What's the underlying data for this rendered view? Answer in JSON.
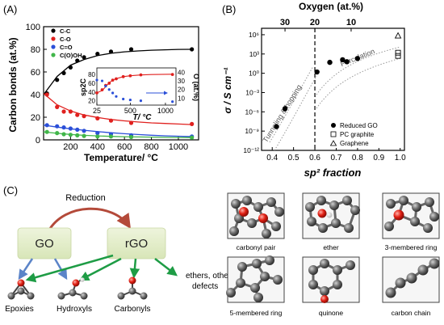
{
  "panel_labels": {
    "a": "(A)",
    "b": "(B)",
    "c": "(C)"
  },
  "chart_data": [
    {
      "type": "scatter",
      "panel": "A",
      "ylabel": "Carbon bonds (at.%)",
      "xlabel": "Temperature/ °C",
      "xlim": [
        0,
        1150
      ],
      "ylim": [
        0,
        100
      ],
      "xticks": [
        200,
        400,
        600,
        800,
        1000
      ],
      "yticks": [
        0,
        20,
        40,
        60,
        80,
        100
      ],
      "legend_position": "top-left",
      "series": [
        {
          "name": "C-C",
          "color": "#000000",
          "x": [
            25,
            100,
            150,
            200,
            250,
            300,
            400,
            500,
            650,
            1100
          ],
          "y": [
            41,
            53,
            59,
            64,
            70,
            73,
            76,
            78,
            80,
            80
          ],
          "fit_x": [
            0,
            100,
            200,
            300,
            400,
            500,
            600,
            700,
            800,
            900,
            1000,
            1100
          ],
          "fit_y": [
            40,
            56,
            66,
            71,
            74.5,
            76.5,
            77.8,
            78.6,
            79.2,
            79.6,
            79.9,
            80
          ]
        },
        {
          "name": "C-O",
          "color": "#e0211f",
          "x": [
            25,
            100,
            150,
            200,
            250,
            300,
            400,
            500,
            650,
            1100
          ],
          "y": [
            40,
            29,
            25,
            25,
            22,
            21,
            19,
            17,
            15,
            14
          ],
          "fit_x": [
            0,
            100,
            200,
            300,
            400,
            500,
            600,
            700,
            800,
            900,
            1000,
            1100
          ],
          "fit_y": [
            41,
            31,
            25.5,
            22,
            19.8,
            18,
            16.8,
            15.8,
            15,
            14.5,
            14,
            13.5
          ]
        },
        {
          "name": "C=O",
          "color": "#2b4fd8",
          "x": [
            25,
            100,
            150,
            200,
            250,
            300,
            400,
            500,
            650,
            1100
          ],
          "y": [
            13,
            12,
            11,
            10,
            9,
            8,
            6,
            5,
            4,
            3
          ],
          "fit_x": [
            0,
            100,
            200,
            300,
            400,
            500,
            600,
            700,
            800,
            900,
            1000,
            1100
          ],
          "fit_y": [
            13,
            11.3,
            9.8,
            8.5,
            7.3,
            6.3,
            5.4,
            4.7,
            4.1,
            3.6,
            3.2,
            2.9
          ]
        },
        {
          "name": "C(O)OH",
          "color": "#41b64a",
          "x": [
            25,
            100,
            150,
            200,
            250,
            300,
            400,
            500,
            650,
            1100
          ],
          "y": [
            7,
            6,
            5,
            4.5,
            4,
            3.5,
            3,
            3,
            2.5,
            2
          ],
          "fit_x": [
            0,
            100,
            200,
            300,
            400,
            500,
            600,
            700,
            800,
            900,
            1000,
            1100
          ],
          "fit_y": [
            7,
            5.8,
            4.8,
            4,
            3.5,
            3.1,
            2.8,
            2.6,
            2.4,
            2.2,
            2.1,
            2
          ]
        }
      ],
      "inset": {
        "xlabel": "T/ °C",
        "ylabel_left": "sp2C",
        "ylabel_right": "O (at.%)",
        "xlim": [
          25,
          1150
        ],
        "xticks": [
          25,
          500,
          1000
        ],
        "yticks_left": [
          20,
          40,
          60,
          80
        ],
        "yticks_right": [
          10,
          20,
          30,
          40
        ],
        "left_ylim": [
          10,
          95
        ],
        "right_ylim": [
          2,
          45
        ],
        "sp2_series": {
          "x": [
            25,
            100,
            150,
            200,
            250,
            300,
            400,
            500,
            650,
            1100
          ],
          "y": [
            38,
            45,
            55,
            60,
            67,
            70,
            75,
            77,
            79,
            80
          ],
          "fit_x": [
            25,
            100,
            150,
            200,
            250,
            300,
            400,
            500,
            650,
            800,
            1100
          ],
          "fit_y": [
            38,
            43,
            52,
            61,
            67,
            70.5,
            75,
            77,
            79,
            79.8,
            80.5
          ]
        },
        "oxygen_series": {
          "x": [
            25,
            100,
            150,
            200,
            250,
            300,
            400,
            500,
            650,
            1100
          ],
          "y": [
            31,
            30,
            24,
            20,
            16,
            12,
            9,
            8,
            7,
            6
          ]
        }
      }
    },
    {
      "type": "scatter",
      "panel": "B",
      "ylabel": "σ / S cm⁻¹",
      "xlabel": "sp² fraction",
      "top_label": "Oxygen (at.%)",
      "top_ticks": [
        "30",
        "20",
        "10"
      ],
      "xlim": [
        0.35,
        1.02
      ],
      "xticks": [
        "0.4",
        "0.5",
        "0.6",
        "0.7",
        "0.8",
        "0.9",
        "1.0"
      ],
      "ylog": true,
      "ylim_exp": [
        -12,
        7
      ],
      "yticks": [
        "10⁻¹²",
        "10⁻⁹",
        "10⁻⁶",
        "10⁻³",
        "10⁰",
        "10³",
        "10⁶"
      ],
      "vline_x": 0.6,
      "legend_position": "bottom-right",
      "region_labels": {
        "left": "Tunneling & hopping",
        "right": "Percolation"
      },
      "series": [
        {
          "name": "Reduced GO",
          "marker": "filled-circle",
          "x": [
            0.42,
            0.46,
            0.61,
            0.67,
            0.73,
            0.75,
            0.8
          ],
          "log_y": [
            -8.3,
            -5.5,
            0.2,
            1.7,
            2.1,
            1.8,
            2.3
          ]
        },
        {
          "name": "PC graphite",
          "marker": "open-square",
          "x": [
            0.99,
            0.99
          ],
          "log_y": [
            2.7,
            3.2
          ]
        },
        {
          "name": "Graphene",
          "marker": "open-triangle",
          "x": [
            0.99
          ],
          "log_y": [
            5.8
          ]
        }
      ]
    }
  ],
  "scheme": {
    "reduction_label": "Reduction",
    "go_label": "GO",
    "rgo_label": "rGO",
    "epoxies_label": "Epoxies",
    "hydroxyls_label": "Hydroxyls",
    "carbonyls_label": "Carbonyls",
    "defects_label_line1": "ethers, other",
    "defects_label_line2": "defects"
  },
  "defects": [
    {
      "label": "carbonyl pair"
    },
    {
      "label": "ether"
    },
    {
      "label": "3-membered ring"
    },
    {
      "label": "5-membered ring"
    },
    {
      "label": "quinone"
    },
    {
      "label": "carbon chain"
    }
  ]
}
